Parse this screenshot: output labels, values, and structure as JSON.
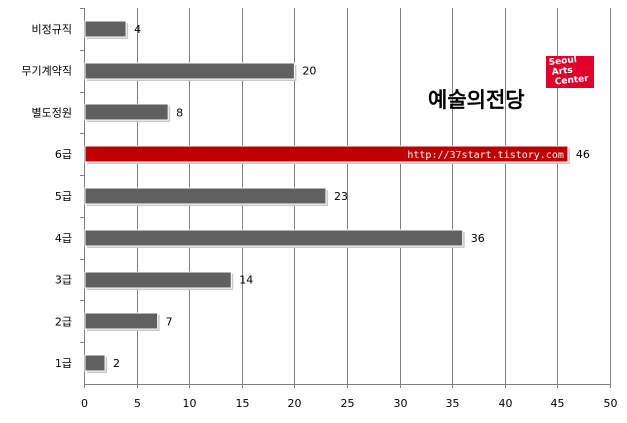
{
  "chart_data": {
    "type": "bar",
    "orientation": "horizontal",
    "categories": [
      "비정규직",
      "무기계약직",
      "별도정원",
      "6급",
      "5급",
      "4급",
      "3급",
      "2급",
      "1급"
    ],
    "values": [
      4,
      20,
      8,
      46,
      23,
      36,
      14,
      7,
      2
    ],
    "xlim": [
      0,
      50
    ],
    "x_ticks": [
      0,
      5,
      10,
      15,
      20,
      25,
      30,
      35,
      40,
      45,
      50
    ],
    "grid": true,
    "highlight_category": "6급",
    "colors": {
      "bar": "#606060",
      "highlight": "#c00000",
      "grid": "#808080",
      "axis": "#808080"
    }
  },
  "watermark": {
    "text": "http://37start.tistory.com"
  },
  "logo": {
    "name": "예술의전당",
    "badge_lines": [
      "Seoul",
      "Arts",
      "Center"
    ],
    "badge_color": "#e0002a"
  }
}
